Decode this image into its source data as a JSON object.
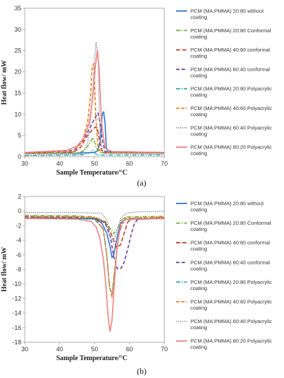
{
  "chart_data": [
    {
      "type": "line",
      "panel_label": "(a)",
      "xlabel": "Sample Temperature/°C",
      "ylabel": "Heat flow/ mW",
      "xlim": [
        30,
        70
      ],
      "ylim": [
        0,
        35
      ],
      "xticks": [
        30,
        40,
        50,
        60,
        70
      ],
      "yticks": [
        0,
        5,
        10,
        15,
        20,
        25,
        30,
        35
      ],
      "legend_position": "right",
      "series": [
        {
          "name": "PCM (MA:PMMA) 20:80 without coating",
          "color": "#2e75c7",
          "dash": "",
          "x": [
            30,
            45,
            50,
            51,
            51.7,
            52.2,
            52.6,
            53,
            53.4,
            54,
            60,
            70
          ],
          "y": [
            0.8,
            0.85,
            1,
            1.5,
            4,
            10,
            10.6,
            8,
            2,
            1,
            0.95,
            0.9
          ]
        },
        {
          "name": "PCM (MA:PMMA) 20:80 Conformal coating",
          "color": "#7aad3d",
          "dash": "6,2,1.5,2",
          "x": [
            30,
            45,
            47,
            48.5,
            49.5,
            50,
            50.5,
            51.5,
            53,
            70
          ],
          "y": [
            0.8,
            0.9,
            1.3,
            3,
            4.5,
            3.5,
            2,
            1,
            0.9,
            0.9
          ]
        },
        {
          "name": "PCM (MA:PMMA) 40:60 conformal coating",
          "color": "#c0392b",
          "dash": "6,3",
          "x": [
            30,
            44,
            46,
            48,
            49.5,
            50.3,
            50.8,
            51.4,
            52,
            53,
            70
          ],
          "y": [
            0.9,
            1.1,
            2.2,
            5,
            6.5,
            7,
            6.8,
            4,
            1.5,
            1,
            1
          ]
        },
        {
          "name": "PCM (MA:PMMA) 60:40 conformal coating",
          "color": "#6a3d9a",
          "dash": "5,3",
          "x": [
            30,
            44,
            46.5,
            48.5,
            50,
            51,
            51.6,
            52.2,
            53,
            70
          ],
          "y": [
            0.9,
            1.5,
            3.5,
            6.5,
            9,
            10.3,
            8,
            4,
            1.2,
            1
          ]
        },
        {
          "name": "PCM (MA:PMMA) 20:80 Polyacrylic coating",
          "color": "#2aa7b8",
          "dash": "6,2,1.5,2",
          "x": [
            30,
            46,
            48,
            49,
            49.6,
            50.1,
            50.6,
            52,
            70
          ],
          "y": [
            0.3,
            0.4,
            0.7,
            1.1,
            1.5,
            1,
            0.5,
            0.4,
            0.4
          ]
        },
        {
          "name": "PCM (MA:PMMA) 40:60 Polyacrylic coating",
          "color": "#e67e22",
          "dash": "5,2.5",
          "x": [
            30,
            44,
            46.5,
            48,
            48.8,
            49.3,
            49.8,
            50.3,
            51,
            52,
            70
          ],
          "y": [
            0.8,
            1.2,
            3.5,
            8,
            14,
            21,
            22,
            10,
            2,
            1,
            0.9
          ]
        },
        {
          "name": "PCM (MA:PMMA) 60:40 Polyacrylic coating",
          "color": "#8e9aa8",
          "dash": "1.5,1.5",
          "x": [
            30,
            46,
            48,
            49,
            49.8,
            50.4,
            51,
            51.5,
            52.5,
            70
          ],
          "y": [
            0.4,
            0.6,
            3,
            10,
            20,
            27,
            24,
            5,
            0.8,
            0.6
          ]
        },
        {
          "name": "PCM (MA:PMMA) 80:20 Polyacrylic coating",
          "color": "#f08080",
          "dash": "",
          "x": [
            30,
            42,
            45,
            47,
            48.5,
            49.5,
            50.2,
            50.8,
            51.3,
            52,
            53,
            55,
            70
          ],
          "y": [
            1,
            1.5,
            2.5,
            4.5,
            8,
            14,
            21,
            25,
            21,
            8,
            2,
            1.2,
            1
          ]
        }
      ]
    },
    {
      "type": "line",
      "panel_label": "(b)",
      "xlabel": "Sample Temperature/°C",
      "ylabel": "Heat flow/ mW",
      "xlim": [
        30,
        70
      ],
      "ylim": [
        -18,
        2
      ],
      "xticks": [
        30,
        40,
        50,
        60,
        70
      ],
      "yticks": [
        2,
        0,
        -2,
        -4,
        -6,
        -8,
        -10,
        -12,
        -14,
        -16,
        -18
      ],
      "legend_position": "right",
      "series": [
        {
          "name": "PCM (MA:PMMA) 20:80 without coating",
          "color": "#2e75c7",
          "dash": "",
          "x": [
            30,
            45,
            50,
            52,
            53.5,
            54.5,
            55,
            55.5,
            56.5,
            57.5,
            59,
            70
          ],
          "y": [
            -1,
            -1,
            -1.1,
            -1.6,
            -3,
            -5,
            -6.4,
            -6,
            -3.5,
            -1.6,
            -1.1,
            -1
          ]
        },
        {
          "name": "PCM (MA:PMMA) 20:80 Conformal coating",
          "color": "#7aad3d",
          "dash": "6,2,1.5,2",
          "x": [
            30,
            45,
            50,
            53,
            54.5,
            55.5,
            56.5,
            57.5,
            59,
            70
          ],
          "y": [
            -0.6,
            -0.65,
            -0.8,
            -1.4,
            -2.4,
            -3.1,
            -2.5,
            -1.3,
            -0.8,
            -0.7
          ]
        },
        {
          "name": "PCM (MA:PMMA) 40:60 conformal coating",
          "color": "#c0392b",
          "dash": "6,3",
          "x": [
            30,
            45,
            50,
            53,
            54.5,
            55.5,
            56.3,
            57.5,
            58.5,
            59.5,
            61,
            70
          ],
          "y": [
            -0.8,
            -0.85,
            -0.95,
            -1.5,
            -2.8,
            -4,
            -5,
            -4.6,
            -3,
            -1.5,
            -1,
            -0.9
          ]
        },
        {
          "name": "PCM (MA:PMMA) 60:40 conformal coating",
          "color": "#6a3d9a",
          "dash": "5,3",
          "x": [
            30,
            45,
            50,
            53,
            54.5,
            55.5,
            56.5,
            57.5,
            58.5,
            59.5,
            60.5,
            61.5,
            62.5,
            70
          ],
          "y": [
            -0.9,
            -0.95,
            -1,
            -1.6,
            -3.5,
            -6.2,
            -7.9,
            -7.9,
            -7,
            -5.2,
            -3.2,
            -1.6,
            -1.1,
            -1
          ]
        },
        {
          "name": "PCM (MA:PMMA) 20:80 Polyacrylic coating",
          "color": "#2aa7b8",
          "dash": "6,2,1.5,2",
          "x": [
            30,
            45,
            50,
            52.5,
            53.5,
            54.3,
            55,
            55.8,
            57,
            58.5,
            70
          ],
          "y": [
            -0.9,
            -0.95,
            -1.1,
            -2.5,
            -6,
            -10.5,
            -11.5,
            -8,
            -3,
            -1.2,
            -1
          ]
        },
        {
          "name": "PCM (MA:PMMA) 40:60 Polyacrylic coating",
          "color": "#e67e22",
          "dash": "5,2.5",
          "x": [
            30,
            45,
            50,
            52.5,
            53.5,
            54.2,
            55,
            55.8,
            57,
            58.5,
            70
          ],
          "y": [
            -0.7,
            -0.75,
            -0.9,
            -2.5,
            -6,
            -10,
            -11.8,
            -8,
            -3,
            -1,
            -0.8
          ]
        },
        {
          "name": "PCM (MA:PMMA) 60:40 Polyacrylic coating",
          "color": "#8e9aa8",
          "dash": "1.5,1.5",
          "x": [
            30,
            45,
            52,
            53.5,
            54.5,
            55.3,
            56.3,
            57.5,
            59,
            62,
            70
          ],
          "y": [
            -0.2,
            -0.2,
            -0.3,
            -1.2,
            -3.5,
            -4.2,
            -3,
            -1,
            -0.3,
            -0.1,
            0
          ]
        },
        {
          "name": "PCM (MA:PMMA) 80:20 Polyacrylic coating",
          "color": "#f08080",
          "dash": "",
          "x": [
            30,
            45,
            49,
            50.5,
            51.5,
            52.5,
            53.3,
            53.9,
            54.4,
            55,
            55.6,
            56.4,
            57.5,
            59,
            70
          ],
          "y": [
            -1,
            -1.1,
            -1.4,
            -2.2,
            -3.7,
            -6.5,
            -10.5,
            -14.5,
            -16.5,
            -15,
            -10.5,
            -5,
            -1.8,
            -1.1,
            -1
          ]
        }
      ]
    }
  ]
}
